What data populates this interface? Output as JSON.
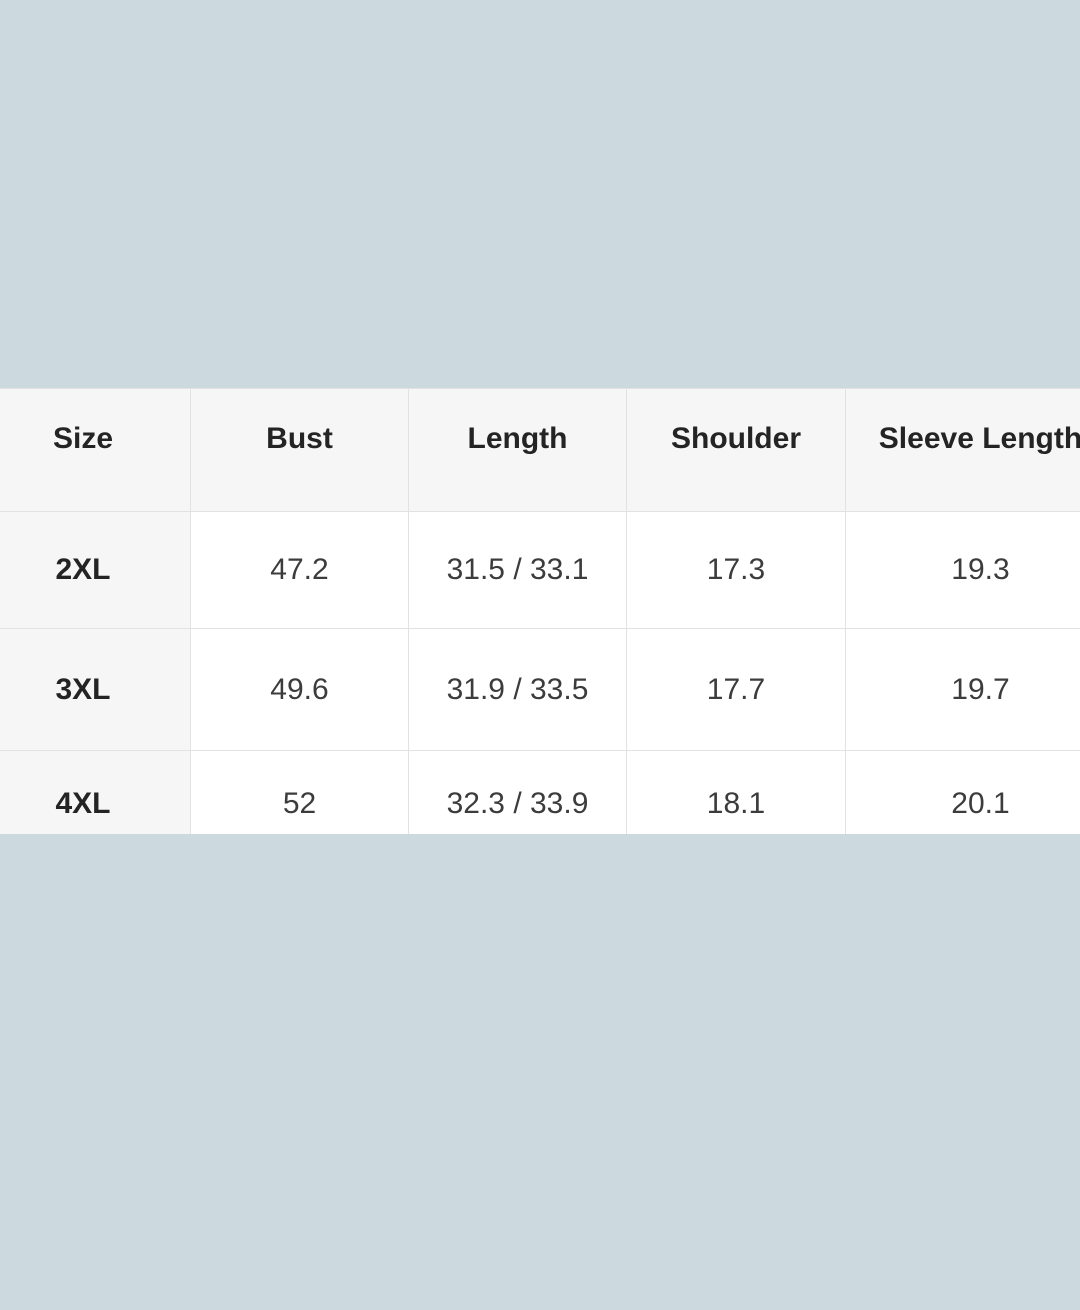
{
  "size_chart": {
    "columns": [
      "Size",
      "Bust",
      "Length",
      "Shoulder",
      "Sleeve Length"
    ],
    "rows": [
      {
        "cells": [
          "2XL",
          "47.2",
          "31.5 / 33.1",
          "17.3",
          "19.3"
        ]
      },
      {
        "cells": [
          "3XL",
          "49.6",
          "31.9 / 33.5",
          "17.7",
          "19.7"
        ]
      },
      {
        "cells": [
          "4XL",
          "52",
          "32.3 / 33.9",
          "18.1",
          "20.1"
        ]
      }
    ],
    "colors": {
      "page_background": "#ccd9de",
      "header_background": "#f6f6f6",
      "cell_background": "#ffffff",
      "grid_line": "#e2e2e2",
      "header_text": "#242424",
      "value_text": "#3c3c3c"
    }
  }
}
